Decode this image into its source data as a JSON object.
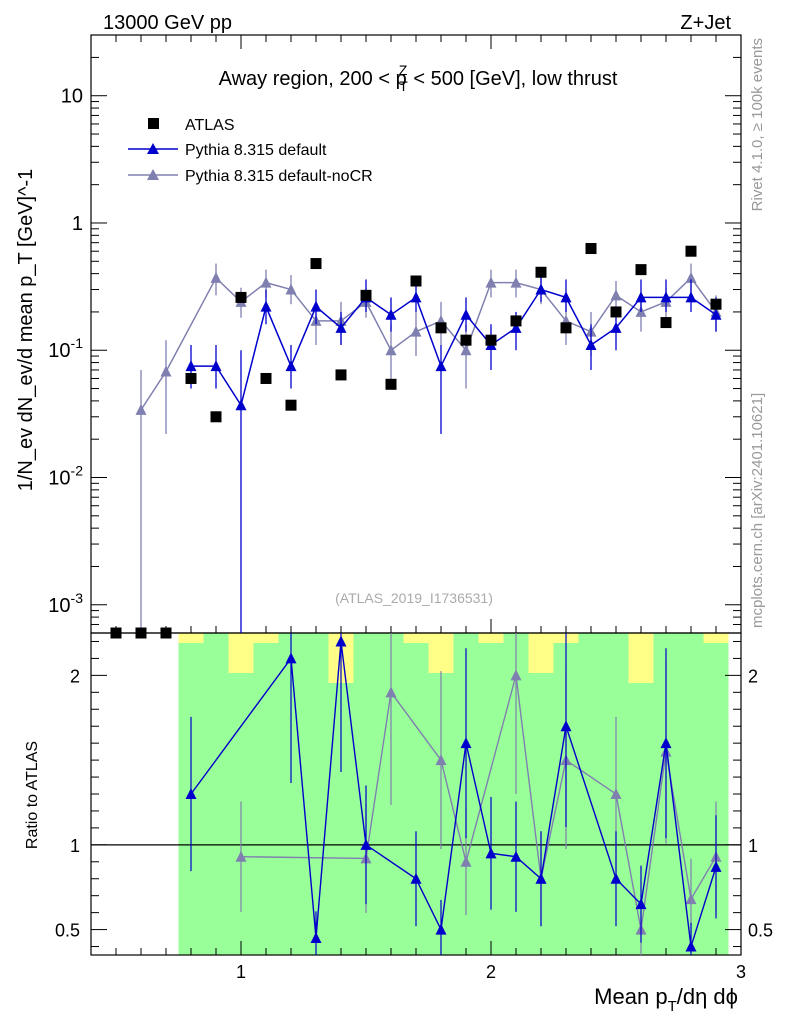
{
  "header": {
    "left": "13000 GeV pp",
    "right": "Z+Jet"
  },
  "side": {
    "rivet": "Rivet 4.1.0, ≥ 100k events",
    "mcplots": "mcplots.cern.ch [arXiv:2401.10621]"
  },
  "chart_data": {
    "type": "scatter",
    "title": "Away region, 200 < p_T^Z < 500 [GeV], low thrust",
    "title_parts": {
      "pre": "Away region, 200 < p",
      "sup": "Z",
      "sub": "T",
      "post": " < 500 [GeV], low thrust"
    },
    "analysis": "(ATLAS_2019_I1736531)",
    "xlabel": "Mean p_T/dη dϕ",
    "xlabel_parts": {
      "pre": "Mean p",
      "sub": "T",
      "post": "/dη dϕ"
    },
    "ylabel": "1/N_ev dN_ev/d mean p_T [GeV]^-1",
    "ratio_ylabel": "Ratio to ATLAS",
    "xlim": [
      0.4,
      3.0
    ],
    "ylim_log": [
      0.0006,
      30
    ],
    "ratio_ylim": [
      0.35,
      2.25
    ],
    "x_ticks": [
      "1",
      "2",
      "3"
    ],
    "y_ticks": [
      "10^-3",
      "10^-2",
      "10^-1",
      "1",
      "10"
    ],
    "ratio_ticks": [
      "0.5",
      "1",
      "2"
    ],
    "legend": [
      "ATLAS",
      "Pythia 8.315 default",
      "Pythia 8.315 default-noCR"
    ],
    "colors": {
      "data": "#000000",
      "default": "#0000cc",
      "nocr": "#8080b0",
      "green": "#99ff99",
      "yellow": "#ffff88"
    },
    "x": [
      0.5,
      0.6,
      0.7,
      0.8,
      0.9,
      1.0,
      1.1,
      1.2,
      1.3,
      1.4,
      1.5,
      1.6,
      1.7,
      1.8,
      1.9,
      2.0,
      2.1,
      2.2,
      2.3,
      2.4,
      2.5,
      2.6,
      2.7,
      2.8,
      2.9
    ],
    "series": [
      {
        "name": "ATLAS",
        "values": [
          0.0006,
          0.0006,
          0.0006,
          0.06,
          0.03,
          0.26,
          0.06,
          0.037,
          0.48,
          0.064,
          0.27,
          0.054,
          0.35,
          0.15,
          0.12,
          0.12,
          0.17,
          0.41,
          0.15,
          0.63,
          0.2,
          0.43,
          0.165,
          0.6,
          0.23
        ]
      },
      {
        "name": "Pythia 8.315 default",
        "values": [
          null,
          null,
          null,
          0.075,
          0.075,
          0.037,
          0.22,
          0.075,
          0.22,
          0.15,
          0.26,
          0.19,
          0.26,
          0.075,
          0.19,
          0.11,
          0.15,
          0.3,
          0.26,
          0.11,
          0.15,
          0.26,
          0.26,
          0.26,
          0.19
        ],
        "err_lo": [
          null,
          null,
          null,
          0.05,
          0.05,
          0.0006,
          0.16,
          0.05,
          0.16,
          0.11,
          0.2,
          0.14,
          0.2,
          0.022,
          0.14,
          0.07,
          0.1,
          0.24,
          0.2,
          0.07,
          0.1,
          0.2,
          0.2,
          0.2,
          0.14
        ],
        "err_hi": [
          null,
          null,
          null,
          0.11,
          0.11,
          0.1,
          0.3,
          0.11,
          0.3,
          0.2,
          0.36,
          0.26,
          0.36,
          0.11,
          0.26,
          0.16,
          0.2,
          0.38,
          0.36,
          0.16,
          0.2,
          0.36,
          0.36,
          0.36,
          0.26
        ],
        "ratio": [
          null,
          null,
          null,
          1.3,
          null,
          null,
          null,
          2.1,
          0.45,
          2.2,
          1.0,
          null,
          0.8,
          0.5,
          1.6,
          0.95,
          0.93,
          0.8,
          1.7,
          null,
          0.8,
          0.65,
          1.6,
          0.4,
          0.87
        ]
      },
      {
        "name": "Pythia 8.315 default-noCR",
        "values": [
          null,
          0.034,
          0.068,
          null,
          0.37,
          0.24,
          0.34,
          0.3,
          0.17,
          0.17,
          0.24,
          0.1,
          0.14,
          0.17,
          0.1,
          0.34,
          0.34,
          0.3,
          0.17,
          0.14,
          0.27,
          0.2,
          0.24,
          0.37,
          0.2
        ],
        "err_lo": [
          null,
          0.0006,
          0.022,
          null,
          0.27,
          0.18,
          0.26,
          0.23,
          0.11,
          0.11,
          0.18,
          0.05,
          0.09,
          0.11,
          0.05,
          0.26,
          0.26,
          0.23,
          0.11,
          0.09,
          0.2,
          0.14,
          0.18,
          0.27,
          0.14
        ],
        "err_hi": [
          null,
          0.07,
          0.12,
          null,
          0.48,
          0.31,
          0.43,
          0.39,
          0.24,
          0.24,
          0.31,
          0.16,
          0.2,
          0.24,
          0.16,
          0.43,
          0.43,
          0.39,
          0.24,
          0.2,
          0.35,
          0.27,
          0.31,
          0.48,
          0.27
        ],
        "ratio": [
          null,
          null,
          null,
          null,
          null,
          0.93,
          null,
          null,
          null,
          null,
          0.92,
          1.9,
          null,
          1.5,
          0.9,
          null,
          2.0,
          0.8,
          1.5,
          null,
          1.3,
          0.5,
          1.55,
          0.68,
          0.93
        ]
      }
    ]
  }
}
